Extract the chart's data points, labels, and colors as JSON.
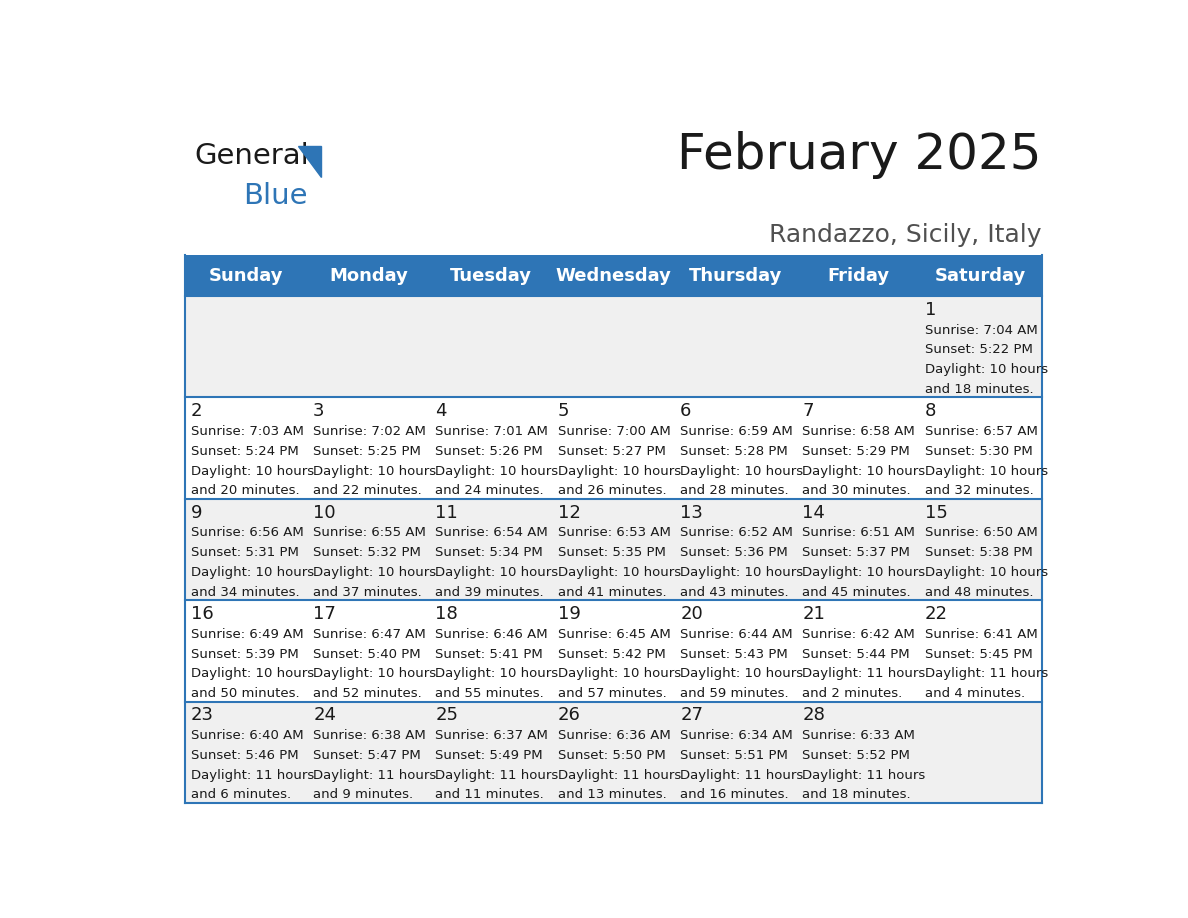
{
  "title": "February 2025",
  "subtitle": "Randazzo, Sicily, Italy",
  "header_color": "#2e75b6",
  "header_text_color": "#ffffff",
  "grid_line_color": "#2e75b6",
  "day_names": [
    "Sunday",
    "Monday",
    "Tuesday",
    "Wednesday",
    "Thursday",
    "Friday",
    "Saturday"
  ],
  "weeks": [
    [
      {
        "day": null,
        "info": null
      },
      {
        "day": null,
        "info": null
      },
      {
        "day": null,
        "info": null
      },
      {
        "day": null,
        "info": null
      },
      {
        "day": null,
        "info": null
      },
      {
        "day": null,
        "info": null
      },
      {
        "day": "1",
        "info": "Sunrise: 7:04 AM\nSunset: 5:22 PM\nDaylight: 10 hours\nand 18 minutes."
      }
    ],
    [
      {
        "day": "2",
        "info": "Sunrise: 7:03 AM\nSunset: 5:24 PM\nDaylight: 10 hours\nand 20 minutes."
      },
      {
        "day": "3",
        "info": "Sunrise: 7:02 AM\nSunset: 5:25 PM\nDaylight: 10 hours\nand 22 minutes."
      },
      {
        "day": "4",
        "info": "Sunrise: 7:01 AM\nSunset: 5:26 PM\nDaylight: 10 hours\nand 24 minutes."
      },
      {
        "day": "5",
        "info": "Sunrise: 7:00 AM\nSunset: 5:27 PM\nDaylight: 10 hours\nand 26 minutes."
      },
      {
        "day": "6",
        "info": "Sunrise: 6:59 AM\nSunset: 5:28 PM\nDaylight: 10 hours\nand 28 minutes."
      },
      {
        "day": "7",
        "info": "Sunrise: 6:58 AM\nSunset: 5:29 PM\nDaylight: 10 hours\nand 30 minutes."
      },
      {
        "day": "8",
        "info": "Sunrise: 6:57 AM\nSunset: 5:30 PM\nDaylight: 10 hours\nand 32 minutes."
      }
    ],
    [
      {
        "day": "9",
        "info": "Sunrise: 6:56 AM\nSunset: 5:31 PM\nDaylight: 10 hours\nand 34 minutes."
      },
      {
        "day": "10",
        "info": "Sunrise: 6:55 AM\nSunset: 5:32 PM\nDaylight: 10 hours\nand 37 minutes."
      },
      {
        "day": "11",
        "info": "Sunrise: 6:54 AM\nSunset: 5:34 PM\nDaylight: 10 hours\nand 39 minutes."
      },
      {
        "day": "12",
        "info": "Sunrise: 6:53 AM\nSunset: 5:35 PM\nDaylight: 10 hours\nand 41 minutes."
      },
      {
        "day": "13",
        "info": "Sunrise: 6:52 AM\nSunset: 5:36 PM\nDaylight: 10 hours\nand 43 minutes."
      },
      {
        "day": "14",
        "info": "Sunrise: 6:51 AM\nSunset: 5:37 PM\nDaylight: 10 hours\nand 45 minutes."
      },
      {
        "day": "15",
        "info": "Sunrise: 6:50 AM\nSunset: 5:38 PM\nDaylight: 10 hours\nand 48 minutes."
      }
    ],
    [
      {
        "day": "16",
        "info": "Sunrise: 6:49 AM\nSunset: 5:39 PM\nDaylight: 10 hours\nand 50 minutes."
      },
      {
        "day": "17",
        "info": "Sunrise: 6:47 AM\nSunset: 5:40 PM\nDaylight: 10 hours\nand 52 minutes."
      },
      {
        "day": "18",
        "info": "Sunrise: 6:46 AM\nSunset: 5:41 PM\nDaylight: 10 hours\nand 55 minutes."
      },
      {
        "day": "19",
        "info": "Sunrise: 6:45 AM\nSunset: 5:42 PM\nDaylight: 10 hours\nand 57 minutes."
      },
      {
        "day": "20",
        "info": "Sunrise: 6:44 AM\nSunset: 5:43 PM\nDaylight: 10 hours\nand 59 minutes."
      },
      {
        "day": "21",
        "info": "Sunrise: 6:42 AM\nSunset: 5:44 PM\nDaylight: 11 hours\nand 2 minutes."
      },
      {
        "day": "22",
        "info": "Sunrise: 6:41 AM\nSunset: 5:45 PM\nDaylight: 11 hours\nand 4 minutes."
      }
    ],
    [
      {
        "day": "23",
        "info": "Sunrise: 6:40 AM\nSunset: 5:46 PM\nDaylight: 11 hours\nand 6 minutes."
      },
      {
        "day": "24",
        "info": "Sunrise: 6:38 AM\nSunset: 5:47 PM\nDaylight: 11 hours\nand 9 minutes."
      },
      {
        "day": "25",
        "info": "Sunrise: 6:37 AM\nSunset: 5:49 PM\nDaylight: 11 hours\nand 11 minutes."
      },
      {
        "day": "26",
        "info": "Sunrise: 6:36 AM\nSunset: 5:50 PM\nDaylight: 11 hours\nand 13 minutes."
      },
      {
        "day": "27",
        "info": "Sunrise: 6:34 AM\nSunset: 5:51 PM\nDaylight: 11 hours\nand 16 minutes."
      },
      {
        "day": "28",
        "info": "Sunrise: 6:33 AM\nSunset: 5:52 PM\nDaylight: 11 hours\nand 18 minutes."
      },
      {
        "day": null,
        "info": null
      }
    ]
  ],
  "logo_general_color": "#1a1a1a",
  "logo_blue_color": "#2e75b6",
  "bg_color": "#ffffff",
  "cell_alt_color": "#f0f0f0",
  "title_fontsize": 36,
  "subtitle_fontsize": 18,
  "header_fontsize": 13,
  "day_number_fontsize": 13,
  "info_fontsize": 9.5
}
